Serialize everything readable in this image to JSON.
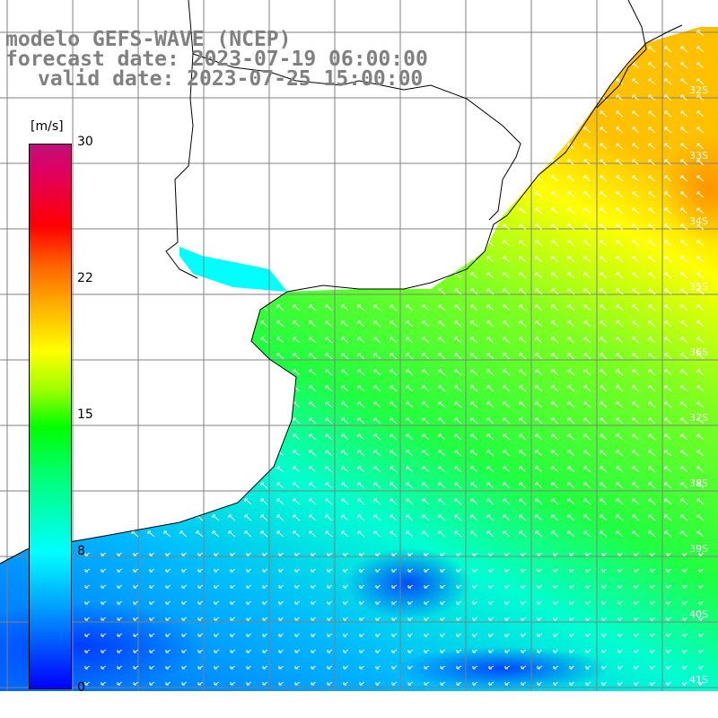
{
  "title": {
    "model": "modelo GEFS-WAVE (NCEP)",
    "forecast": "forecast date: 2023-07-19 06:00:00",
    "valid": "valid date: 2023-07-25 15:00:00"
  },
  "colorbar": {
    "unit": "[m/s]",
    "ticks": [
      "30",
      "22",
      "15",
      "8",
      "0"
    ],
    "stops": [
      0,
      8,
      15,
      22,
      30
    ]
  },
  "lat_labels": [
    "32S",
    "33S",
    "34S",
    "35S",
    "36S",
    "37S",
    "38S",
    "39S",
    "40S",
    "41S"
  ],
  "colors": {
    "ocean_low": "#0050ff",
    "ocean_mid": "#00e0ff",
    "ocean_high": "#40ff40",
    "ocean_max": "#ffd000",
    "coast": "#000000",
    "grid": "#808080"
  }
}
